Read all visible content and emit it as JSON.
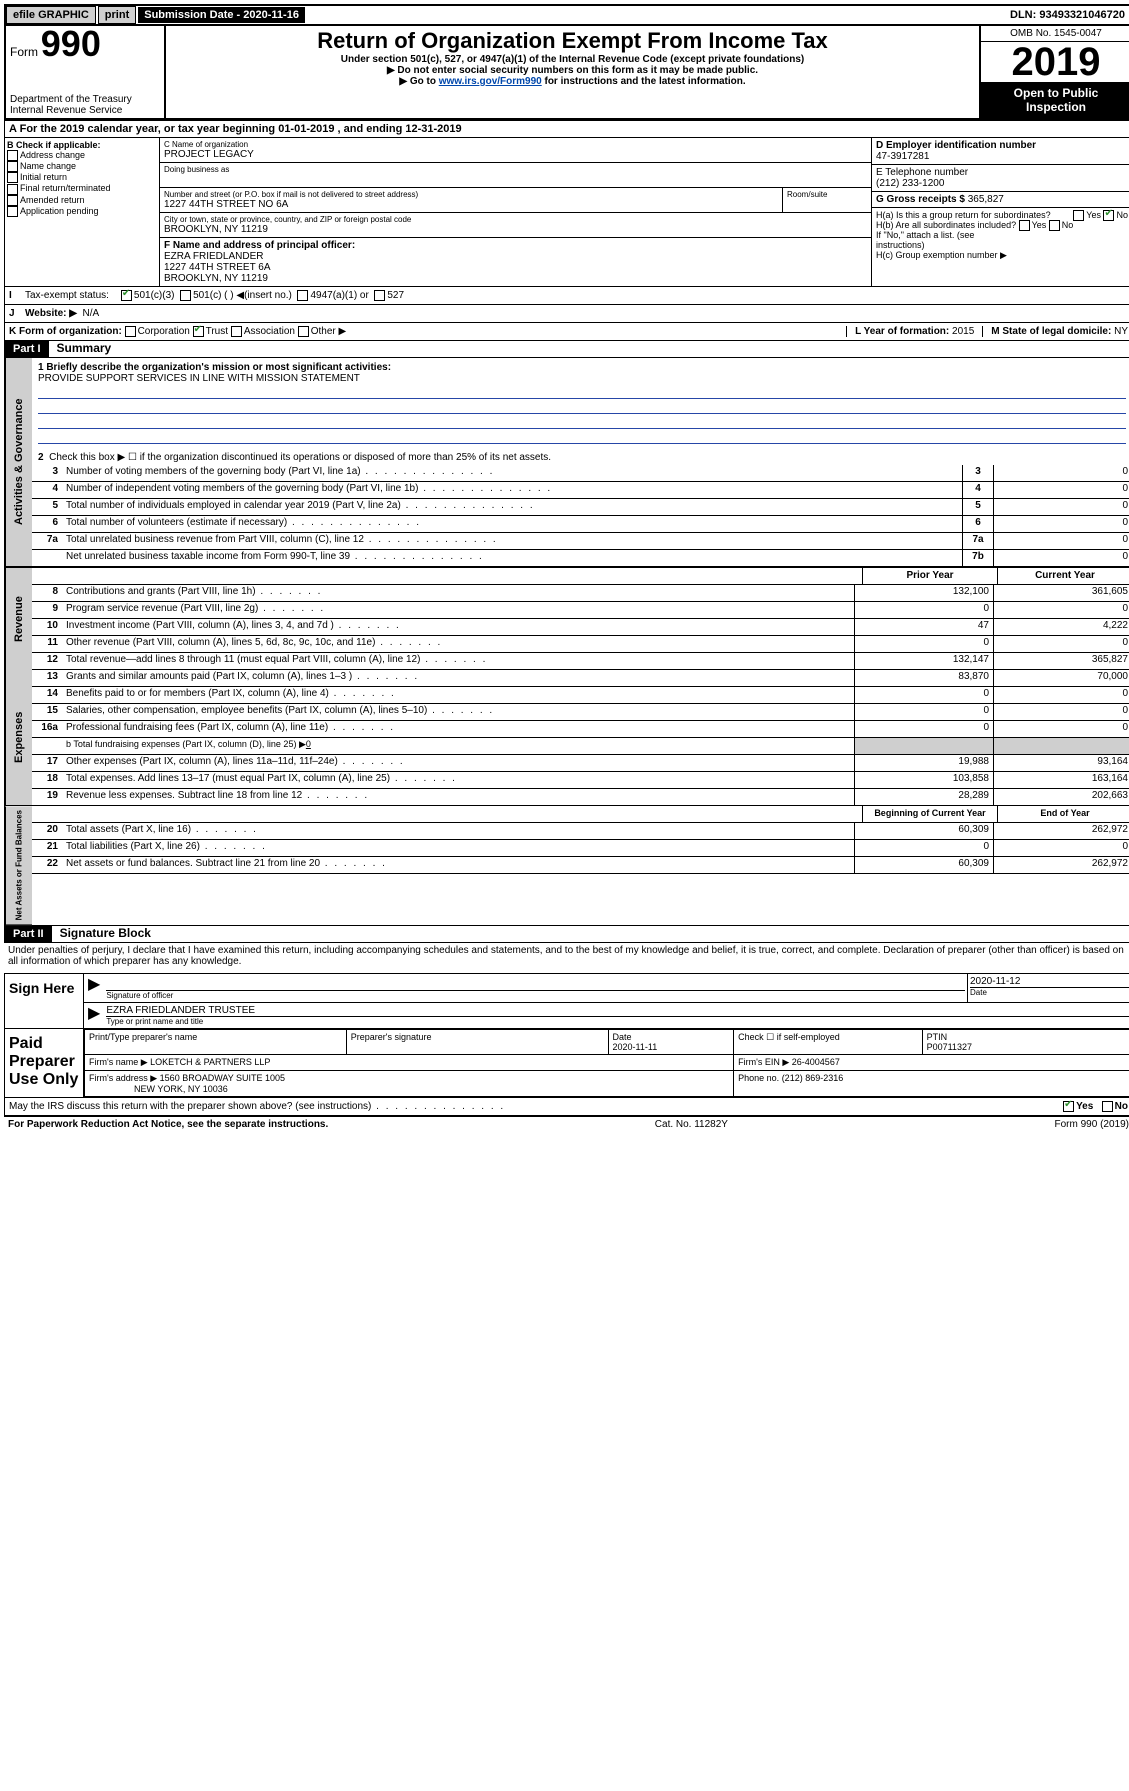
{
  "topbar": {
    "efile": "efile GRAPHIC",
    "print": "print",
    "sub_label": "Submission Date -",
    "sub_date": "2020-11-16",
    "dln": "DLN: 93493321046720"
  },
  "header": {
    "form_word": "Form",
    "form_num": "990",
    "dept1": "Department of the Treasury",
    "dept2": "Internal Revenue Service",
    "title": "Return of Organization Exempt From Income Tax",
    "sub1": "Under section 501(c), 527, or 4947(a)(1) of the Internal Revenue Code (except private foundations)",
    "sub2": "▶ Do not enter social security numbers on this form as it may be made public.",
    "sub3_pre": "▶ Go to ",
    "sub3_link": "www.irs.gov/Form990",
    "sub3_post": " for instructions and the latest information.",
    "omb": "OMB No. 1545-0047",
    "year": "2019",
    "open1": "Open to Public",
    "open2": "Inspection"
  },
  "period": {
    "line": "For the 2019 calendar year, or tax year beginning 01-01-2019   , and ending 12-31-2019"
  },
  "boxB": {
    "hdr": "B Check if applicable:",
    "opts": [
      "Address change",
      "Name change",
      "Initial return",
      "Final return/terminated",
      "Amended return",
      "Application pending"
    ]
  },
  "boxC": {
    "label_name": "C Name of organization",
    "org": "PROJECT LEGACY",
    "dba_label": "Doing business as",
    "addr_label": "Number and street (or P.O. box if mail is not delivered to street address)",
    "room_label": "Room/suite",
    "addr": "1227 44TH STREET NO 6A",
    "city_label": "City or town, state or province, country, and ZIP or foreign postal code",
    "city": "BROOKLYN, NY  11219",
    "F_label": "F  Name and address of principal officer:",
    "F_name": "EZRA FRIEDLANDER",
    "F_addr1": "1227 44TH STREET 6A",
    "F_addr2": "BROOKLYN, NY  11219"
  },
  "boxD": {
    "label": "D Employer identification number",
    "val": "47-3917281"
  },
  "boxE": {
    "label": "E Telephone number",
    "val": "(212) 233-1200"
  },
  "boxG": {
    "label": "G Gross receipts $",
    "val": "365,827"
  },
  "boxH": {
    "a": "H(a)  Is this a group return for subordinates?",
    "b": "H(b)  Are all subordinates included?",
    "note": "If \"No,\" attach a list. (see instructions)",
    "c": "H(c)  Group exemption number ▶",
    "yes": "Yes",
    "no": "No"
  },
  "boxI": {
    "label": "Tax-exempt status:",
    "o1": "501(c)(3)",
    "o2": "501(c) (  ) ◀(insert no.)",
    "o3": "4947(a)(1) or",
    "o4": "527"
  },
  "boxJ": {
    "label": "Website: ▶",
    "val": "N/A"
  },
  "boxK": {
    "label": "K Form of organization:",
    "o1": "Corporation",
    "o2": "Trust",
    "o3": "Association",
    "o4": "Other ▶"
  },
  "boxL": {
    "label": "L Year of formation:",
    "val": "2015"
  },
  "boxM": {
    "label": "M State of legal domicile:",
    "val": "NY"
  },
  "part1": {
    "hdr": "Part I",
    "title": "Summary",
    "l1a": "1  Briefly describe the organization's mission or most significant activities:",
    "l1b": "PROVIDE SUPPORT SERVICES IN LINE WITH MISSION STATEMENT",
    "l2": "Check this box ▶ ☐ if the organization discontinued its operations or disposed of more than 25% of its net assets.",
    "rows_single": [
      {
        "n": "3",
        "d": "Number of voting members of the governing body (Part VI, line 1a)",
        "k": "3",
        "v": "0"
      },
      {
        "n": "4",
        "d": "Number of independent voting members of the governing body (Part VI, line 1b)",
        "k": "4",
        "v": "0"
      },
      {
        "n": "5",
        "d": "Total number of individuals employed in calendar year 2019 (Part V, line 2a)",
        "k": "5",
        "v": "0"
      },
      {
        "n": "6",
        "d": "Total number of volunteers (estimate if necessary)",
        "k": "6",
        "v": "0"
      },
      {
        "n": "7a",
        "d": "Total unrelated business revenue from Part VIII, column (C), line 12",
        "k": "7a",
        "v": "0"
      },
      {
        "n": "",
        "d": "Net unrelated business taxable income from Form 990-T, line 39",
        "k": "7b",
        "v": "0"
      }
    ],
    "col_py": "Prior Year",
    "col_cy": "Current Year",
    "rev_rows": [
      {
        "n": "8",
        "d": "Contributions and grants (Part VIII, line 1h)",
        "py": "132,100",
        "cy": "361,605"
      },
      {
        "n": "9",
        "d": "Program service revenue (Part VIII, line 2g)",
        "py": "0",
        "cy": "0"
      },
      {
        "n": "10",
        "d": "Investment income (Part VIII, column (A), lines 3, 4, and 7d )",
        "py": "47",
        "cy": "4,222"
      },
      {
        "n": "11",
        "d": "Other revenue (Part VIII, column (A), lines 5, 6d, 8c, 9c, 10c, and 11e)",
        "py": "0",
        "cy": "0"
      },
      {
        "n": "12",
        "d": "Total revenue—add lines 8 through 11 (must equal Part VIII, column (A), line 12)",
        "py": "132,147",
        "cy": "365,827"
      }
    ],
    "exp_rows": [
      {
        "n": "13",
        "d": "Grants and similar amounts paid (Part IX, column (A), lines 1–3 )",
        "py": "83,870",
        "cy": "70,000"
      },
      {
        "n": "14",
        "d": "Benefits paid to or for members (Part IX, column (A), line 4)",
        "py": "0",
        "cy": "0"
      },
      {
        "n": "15",
        "d": "Salaries, other compensation, employee benefits (Part IX, column (A), lines 5–10)",
        "py": "0",
        "cy": "0"
      },
      {
        "n": "16a",
        "d": "Professional fundraising fees (Part IX, column (A), line 11e)",
        "py": "0",
        "cy": "0"
      }
    ],
    "l16b_pre": "b  Total fundraising expenses (Part IX, column (D), line 25) ▶",
    "l16b_val": "0",
    "exp_rows2": [
      {
        "n": "17",
        "d": "Other expenses (Part IX, column (A), lines 11a–11d, 11f–24e)",
        "py": "19,988",
        "cy": "93,164"
      },
      {
        "n": "18",
        "d": "Total expenses. Add lines 13–17 (must equal Part IX, column (A), line 25)",
        "py": "103,858",
        "cy": "163,164"
      },
      {
        "n": "19",
        "d": "Revenue less expenses. Subtract line 18 from line 12",
        "py": "28,289",
        "cy": "202,663"
      }
    ],
    "col_by": "Beginning of Current Year",
    "col_ey": "End of Year",
    "na_rows": [
      {
        "n": "20",
        "d": "Total assets (Part X, line 16)",
        "py": "60,309",
        "cy": "262,972"
      },
      {
        "n": "21",
        "d": "Total liabilities (Part X, line 26)",
        "py": "0",
        "cy": "0"
      },
      {
        "n": "22",
        "d": "Net assets or fund balances. Subtract line 21 from line 20",
        "py": "60,309",
        "cy": "262,972"
      }
    ]
  },
  "part2": {
    "hdr": "Part II",
    "title": "Signature Block",
    "decl": "Under penalties of perjury, I declare that I have examined this return, including accompanying schedules and statements, and to the best of my knowledge and belief, it is true, correct, and complete. Declaration of preparer (other than officer) is based on all information of which preparer has any knowledge."
  },
  "sign": {
    "here": "Sign Here",
    "sig_of": "Signature of officer",
    "date_label": "Date",
    "date": "2020-11-12",
    "name": "EZRA FRIEDLANDER  TRUSTEE",
    "name_label": "Type or print name and title"
  },
  "paid": {
    "left": "Paid Preparer Use Only",
    "h1": "Print/Type preparer's name",
    "h2": "Preparer's signature",
    "h3": "Date",
    "h4": "Check ☐ if self-employed",
    "h5": "PTIN",
    "date": "2020-11-11",
    "ptin": "P00711327",
    "firm_name_l": "Firm's name     ▶",
    "firm_name": "LOKETCH & PARTNERS LLP",
    "firm_ein_l": "Firm's EIN ▶",
    "firm_ein": "26-4004567",
    "firm_addr_l": "Firm's address ▶",
    "firm_addr1": "1560 BROADWAY SUITE 1005",
    "firm_addr2": "NEW YORK, NY  10036",
    "phone_l": "Phone no.",
    "phone": "(212) 869-2316"
  },
  "discuss": {
    "q": "May the IRS discuss this return with the preparer shown above? (see instructions)",
    "yes": "Yes",
    "no": "No"
  },
  "footer": {
    "left": "For Paperwork Reduction Act Notice, see the separate instructions.",
    "mid": "Cat. No. 11282Y",
    "right": "Form 990 (2019)"
  },
  "vtabs": {
    "gov": "Activities & Governance",
    "rev": "Revenue",
    "exp": "Expenses",
    "na": "Net Assets or Fund Balances"
  }
}
